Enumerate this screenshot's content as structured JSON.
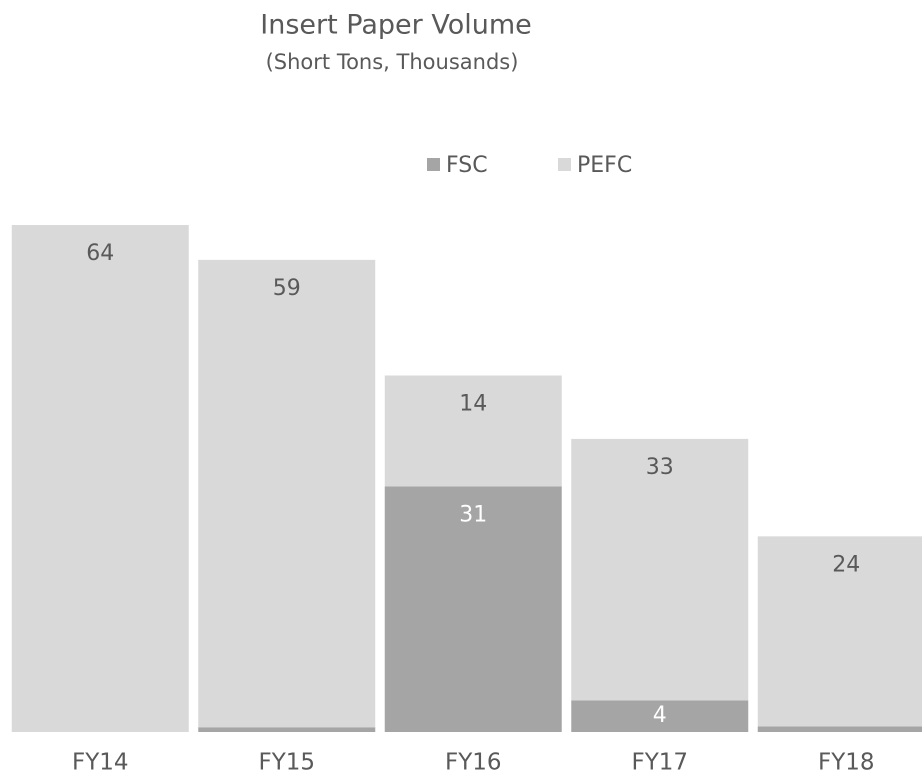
{
  "chart_data": {
    "type": "stacked_bar",
    "title": "Insert Paper Volume",
    "subtitle": "(Short Tons, Thousands)",
    "categories": [
      "FY14",
      "FY15",
      "FY16",
      "FY17",
      "FY18"
    ],
    "series": [
      {
        "name": "FSC",
        "color": "#a5a5a5",
        "values": [
          0,
          0.6,
          31,
          4,
          0.7
        ]
      },
      {
        "name": "PEFC",
        "color": "#d9d9d9",
        "values": [
          64,
          59,
          14,
          33,
          24
        ]
      }
    ],
    "ylim": [
      0,
      64
    ],
    "legend": "top"
  }
}
